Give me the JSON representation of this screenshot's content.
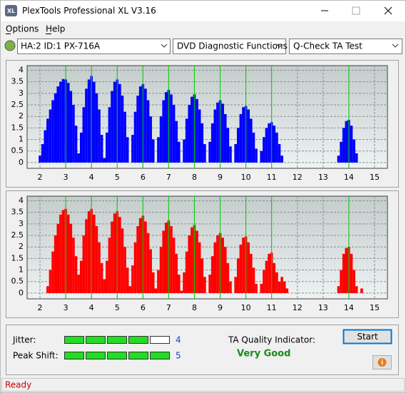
{
  "window": {
    "title": "PlexTools Professional XL V3.16",
    "icon": "XL"
  },
  "menu": [
    "Options",
    "Help"
  ],
  "toolbar": {
    "drive": "HA:2 ID:1  PX-716A",
    "function": "DVD Diagnostic Functions",
    "test": "Q-Check TA Test"
  },
  "chart_data": [
    {
      "type": "bar",
      "color": "#0000ff",
      "x": [
        2.0,
        2.1,
        2.2,
        2.3,
        2.4,
        2.5,
        2.6,
        2.7,
        2.8,
        2.9,
        3.0,
        3.1,
        3.2,
        3.3,
        3.4,
        3.5,
        3.6,
        3.7,
        3.8,
        3.9,
        4.0,
        4.1,
        4.2,
        4.3,
        4.4,
        4.5,
        4.6,
        4.7,
        4.8,
        4.9,
        5.0,
        5.1,
        5.2,
        5.3,
        5.4,
        5.5,
        5.6,
        5.7,
        5.8,
        5.9,
        6.0,
        6.1,
        6.2,
        6.3,
        6.4,
        6.5,
        6.6,
        6.7,
        6.8,
        6.9,
        7.0,
        7.1,
        7.2,
        7.3,
        7.4,
        7.5,
        7.6,
        7.7,
        7.8,
        7.9,
        8.0,
        8.1,
        8.2,
        8.3,
        8.4,
        8.5,
        8.6,
        8.7,
        8.8,
        8.9,
        9.0,
        9.1,
        9.2,
        9.3,
        9.4,
        9.5,
        9.6,
        9.7,
        9.8,
        9.9,
        10.0,
        10.1,
        10.2,
        10.3,
        10.4,
        10.5,
        10.6,
        10.7,
        10.8,
        10.9,
        11.0,
        11.1,
        11.2,
        11.3,
        11.4,
        11.5,
        11.6,
        11.7,
        11.8,
        11.9,
        12.0,
        12.1,
        12.2,
        12.3,
        12.4,
        12.5,
        12.6,
        12.7,
        12.8,
        12.9,
        13.0,
        13.1,
        13.2,
        13.3,
        13.4,
        13.5,
        13.6,
        13.7,
        13.8,
        13.9,
        14.0,
        14.1,
        14.2,
        14.3,
        14.4,
        14.5
      ],
      "values": [
        0.3,
        0.8,
        1.4,
        1.9,
        2.3,
        2.7,
        3.0,
        3.3,
        3.5,
        3.62,
        3.6,
        3.45,
        3.1,
        2.5,
        1.6,
        0.4,
        1.3,
        2.4,
        3.2,
        3.6,
        3.75,
        3.5,
        3.0,
        2.3,
        1.2,
        0.2,
        1.3,
        2.4,
        3.1,
        3.5,
        3.6,
        3.4,
        2.9,
        2.2,
        1.1,
        0,
        1.2,
        2.2,
        2.9,
        3.3,
        3.4,
        3.2,
        2.7,
        2.0,
        1.0,
        0,
        1.1,
        2.0,
        2.7,
        3.05,
        3.15,
        2.95,
        2.5,
        1.8,
        0.9,
        0,
        1.0,
        1.9,
        2.5,
        2.85,
        2.95,
        2.75,
        2.3,
        1.7,
        0.8,
        0,
        0.9,
        1.7,
        2.3,
        2.6,
        2.7,
        2.55,
        2.1,
        1.5,
        0.7,
        0,
        0.8,
        1.5,
        2.1,
        2.4,
        2.45,
        2.3,
        1.9,
        1.3,
        0.6,
        0,
        0.5,
        1.1,
        1.5,
        1.7,
        1.75,
        1.6,
        1.3,
        0.8,
        0.3,
        0,
        0,
        0,
        0,
        0,
        0,
        0,
        0,
        0,
        0,
        0,
        0,
        0,
        0,
        0,
        0,
        0,
        0,
        0,
        0,
        0,
        0.3,
        0.9,
        1.5,
        1.8,
        1.85,
        1.6,
        1.0,
        0.4,
        0,
        0
      ],
      "xlim": [
        1.5,
        15.5
      ],
      "ylim": [
        -0.25,
        4.2
      ],
      "xticks": [
        2,
        3,
        4,
        5,
        6,
        7,
        8,
        9,
        10,
        11,
        12,
        13,
        14,
        15
      ],
      "yticks": [
        4,
        3.5,
        3,
        2.5,
        2,
        1.5,
        1,
        0.5,
        0
      ],
      "markers": [
        3,
        4,
        5,
        6,
        7,
        8,
        9,
        10,
        11,
        14
      ],
      "marker_color": "#00d000",
      "grid": true
    },
    {
      "type": "bar",
      "color": "#ff0000",
      "x": [
        2.0,
        2.1,
        2.2,
        2.3,
        2.4,
        2.5,
        2.6,
        2.7,
        2.8,
        2.9,
        3.0,
        3.1,
        3.2,
        3.3,
        3.4,
        3.5,
        3.6,
        3.7,
        3.8,
        3.9,
        4.0,
        4.1,
        4.2,
        4.3,
        4.4,
        4.5,
        4.6,
        4.7,
        4.8,
        4.9,
        5.0,
        5.1,
        5.2,
        5.3,
        5.4,
        5.5,
        5.6,
        5.7,
        5.8,
        5.9,
        6.0,
        6.1,
        6.2,
        6.3,
        6.4,
        6.5,
        6.6,
        6.7,
        6.8,
        6.9,
        7.0,
        7.1,
        7.2,
        7.3,
        7.4,
        7.5,
        7.6,
        7.7,
        7.8,
        7.9,
        8.0,
        8.1,
        8.2,
        8.3,
        8.4,
        8.5,
        8.6,
        8.7,
        8.8,
        8.9,
        9.0,
        9.1,
        9.2,
        9.3,
        9.4,
        9.5,
        9.6,
        9.7,
        9.8,
        9.9,
        10.0,
        10.1,
        10.2,
        10.3,
        10.4,
        10.5,
        10.6,
        10.7,
        10.8,
        10.9,
        11.0,
        11.1,
        11.2,
        11.3,
        11.4,
        11.5,
        11.6,
        11.7,
        11.8,
        11.9,
        12.0,
        12.1,
        12.2,
        12.3,
        12.4,
        12.5,
        12.6,
        12.7,
        12.8,
        12.9,
        13.0,
        13.1,
        13.2,
        13.3,
        13.4,
        13.5,
        13.6,
        13.7,
        13.8,
        13.9,
        14.0,
        14.1,
        14.2,
        14.3,
        14.4,
        14.5
      ],
      "values": [
        0,
        0,
        0,
        0.3,
        1.0,
        1.8,
        2.5,
        3.0,
        3.4,
        3.6,
        3.65,
        3.4,
        3.0,
        2.4,
        1.6,
        0.8,
        1.4,
        2.5,
        3.2,
        3.55,
        3.65,
        3.4,
        2.9,
        2.2,
        1.3,
        0.6,
        1.4,
        2.4,
        3.1,
        3.45,
        3.55,
        3.3,
        2.8,
        2.0,
        1.1,
        0.3,
        1.2,
        2.2,
        2.9,
        3.25,
        3.35,
        3.1,
        2.6,
        1.9,
        0.9,
        0.2,
        1.0,
        2.0,
        2.7,
        3.05,
        3.15,
        2.9,
        2.4,
        1.7,
        0.8,
        0.1,
        0.9,
        1.8,
        2.5,
        2.85,
        2.95,
        2.7,
        2.2,
        1.5,
        0.7,
        0,
        0.8,
        1.6,
        2.2,
        2.5,
        2.6,
        2.4,
        2.0,
        1.3,
        0.5,
        0,
        0.7,
        1.5,
        2.1,
        2.4,
        2.45,
        2.2,
        1.7,
        1.1,
        0.4,
        0,
        0.4,
        1.0,
        1.4,
        1.7,
        1.75,
        1.3,
        0.9,
        0.5,
        0.7,
        0.5,
        0.2,
        0,
        0,
        0,
        0,
        0,
        0,
        0,
        0,
        0,
        0,
        0,
        0,
        0,
        0,
        0,
        0,
        0,
        0,
        0,
        0.3,
        1.0,
        1.7,
        1.95,
        2.0,
        1.7,
        1.0,
        0.3,
        0,
        0.2
      ],
      "xlim": [
        1.5,
        15.5
      ],
      "ylim": [
        -0.25,
        4.2
      ],
      "xticks": [
        2,
        3,
        4,
        5,
        6,
        7,
        8,
        9,
        10,
        11,
        12,
        13,
        14,
        15
      ],
      "yticks": [
        4,
        3.5,
        3,
        2.5,
        2,
        1.5,
        1,
        0.5,
        0
      ],
      "markers": [
        3,
        4,
        5,
        6,
        7,
        8,
        9,
        10,
        11,
        14
      ],
      "marker_color": "#00d000",
      "grid": true
    }
  ],
  "results": {
    "jitter": {
      "label": "Jitter:",
      "value": 4
    },
    "peak_shift": {
      "label": "Peak Shift:",
      "value": 5
    },
    "scale_max": 5,
    "ta_label": "TA Quality Indicator:",
    "ta_value": "Very Good",
    "start": "Start",
    "info": "i"
  },
  "status": "Ready"
}
